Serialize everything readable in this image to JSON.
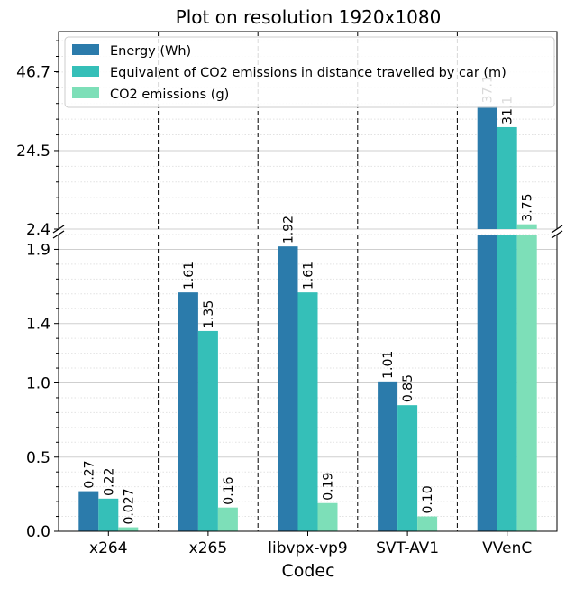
{
  "chart_data": {
    "type": "bar",
    "title": "Plot on resolution 1920x1080",
    "xlabel": "Codec",
    "ylabel": "",
    "categories": [
      "x264",
      "x265",
      "libvpx-vp9",
      "SVT-AV1",
      "VVenC"
    ],
    "series": [
      {
        "name": "Energy (Wh)",
        "color": "#2b7bab",
        "values": [
          0.27,
          1.61,
          1.92,
          1.01,
          37.1
        ],
        "labels": [
          "0.27",
          "1.61",
          "1.92",
          "1.01",
          "37.1"
        ]
      },
      {
        "name": "Equivalent of CO2 emissions in distance travelled by car (m)",
        "color": "#35bfb8",
        "values": [
          0.22,
          1.35,
          1.61,
          0.85,
          31.1
        ],
        "labels": [
          "0.22",
          "1.35",
          "1.61",
          "0.85",
          "31.1"
        ]
      },
      {
        "name": "CO2 emissions (g)",
        "color": "#7ddfb8",
        "values": [
          0.027,
          0.16,
          0.19,
          0.1,
          3.75
        ],
        "labels": [
          "0.027",
          "0.16",
          "0.19",
          "0.10",
          "3.75"
        ]
      }
    ],
    "broken_axis": true,
    "upper_panel": {
      "ylim": [
        2.4,
        58
      ],
      "ticks": [
        "2.4",
        "24.5",
        "46.7"
      ]
    },
    "lower_panel": {
      "ylim": [
        0,
        2.0
      ],
      "ticks": [
        "0.0",
        "0.5",
        "1.0",
        "1.4",
        "1.9"
      ]
    },
    "grid": true,
    "legend_position": "top-left"
  }
}
